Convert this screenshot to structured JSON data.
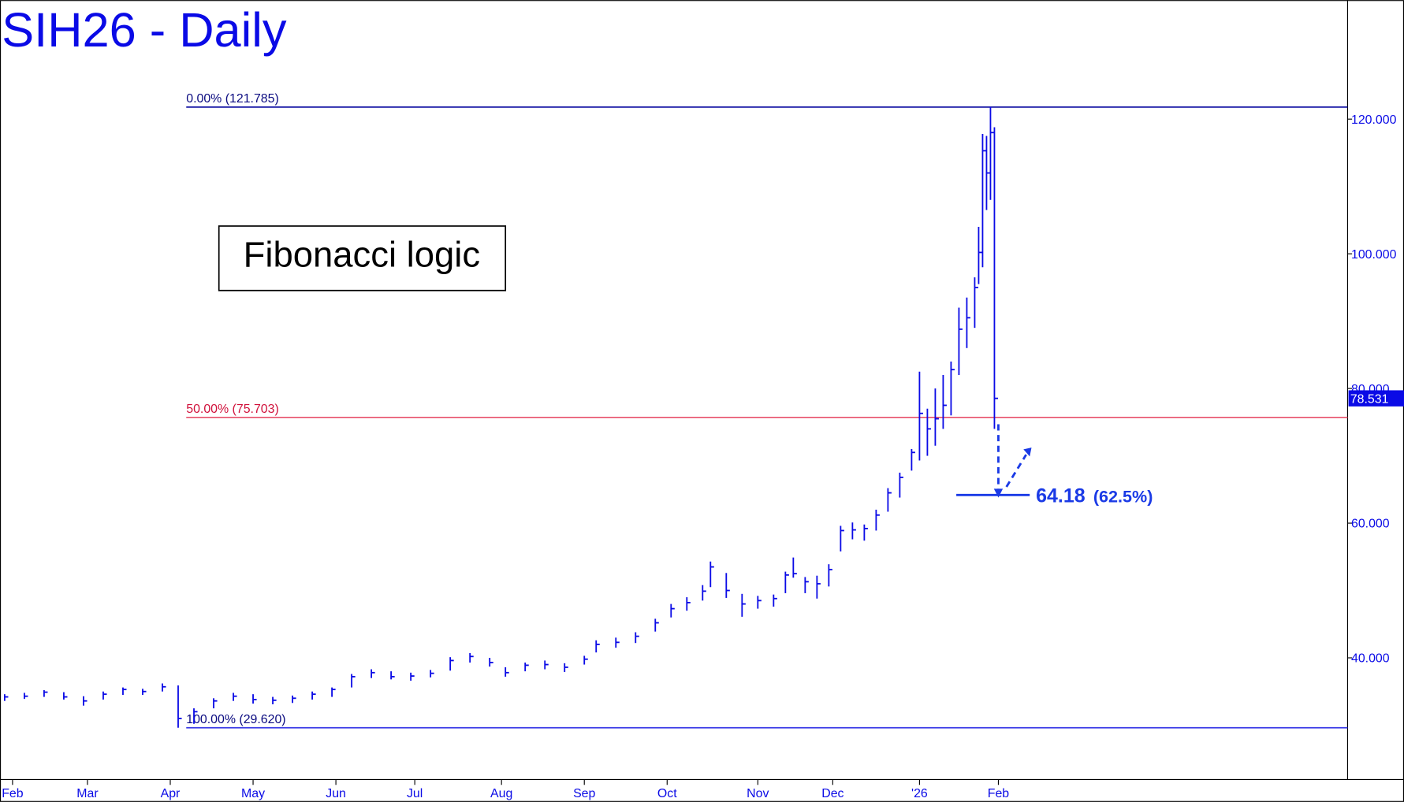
{
  "chart_data": {
    "type": "ohlc",
    "title": "SIH26 - Daily",
    "color": "#0a0ae6",
    "x": [
      -2,
      3,
      8,
      13,
      18,
      23,
      28,
      33,
      38,
      42,
      46,
      51,
      56,
      61,
      66,
      71,
      76,
      81,
      86,
      91,
      96,
      101,
      106,
      111,
      116,
      121,
      125,
      130,
      135,
      140,
      145,
      148,
      153,
      158,
      163,
      167,
      171,
      175,
      177,
      181,
      185,
      189,
      193,
      196,
      198,
      201,
      204,
      207,
      210,
      213,
      216,
      219,
      222,
      225,
      228,
      230,
      232,
      234,
      236,
      238,
      240,
      242,
      244,
      245,
      246,
      247,
      248,
      249
    ],
    "high": [
      34.6,
      34.8,
      35.2,
      34.9,
      34.3,
      35.0,
      35.6,
      35.4,
      36.2,
      35.9,
      32.5,
      34.0,
      34.8,
      34.6,
      34.2,
      34.4,
      35.0,
      35.6,
      37.6,
      38.3,
      38.0,
      37.8,
      38.2,
      40.1,
      40.7,
      40.0,
      38.6,
      39.3,
      39.6,
      39.2,
      40.3,
      42.6,
      43.0,
      43.8,
      45.8,
      48.0,
      49.0,
      50.8,
      54.3,
      52.6,
      49.5,
      49.2,
      49.4,
      52.8,
      54.9,
      52.0,
      52.2,
      53.9,
      59.6,
      60.1,
      59.8,
      62.0,
      65.2,
      67.5,
      71.0,
      82.5,
      77.0,
      80.0,
      82.0,
      84.0,
      92.0,
      93.5,
      96.5,
      104.0,
      117.8,
      117.5,
      121.785,
      118.8
    ],
    "low": [
      33.6,
      33.9,
      34.2,
      33.8,
      32.9,
      33.8,
      34.5,
      34.5,
      35.0,
      29.62,
      30.2,
      32.5,
      33.6,
      33.2,
      33.1,
      33.3,
      33.8,
      34.2,
      35.6,
      37.0,
      36.8,
      36.6,
      37.1,
      38.1,
      39.3,
      38.7,
      37.2,
      38.0,
      38.3,
      37.9,
      39.0,
      40.8,
      41.5,
      42.2,
      43.9,
      46.0,
      47.0,
      48.5,
      50.5,
      48.9,
      46.1,
      47.3,
      47.6,
      49.6,
      51.9,
      49.6,
      48.8,
      50.6,
      55.8,
      57.6,
      57.4,
      58.9,
      61.7,
      63.8,
      67.8,
      69.3,
      70.0,
      71.5,
      74.0,
      76.0,
      82.0,
      86.0,
      89.0,
      95.5,
      98.0,
      106.5,
      108.0,
      74.0
    ],
    "close": [
      34.2,
      34.3,
      34.9,
      34.2,
      33.6,
      34.6,
      35.3,
      35.0,
      35.7,
      31.0,
      32.0,
      33.6,
      34.3,
      33.8,
      33.7,
      34.0,
      34.6,
      35.3,
      37.2,
      37.8,
      37.2,
      37.3,
      37.7,
      39.6,
      40.2,
      39.3,
      37.8,
      38.9,
      39.0,
      38.6,
      39.8,
      42.0,
      42.3,
      43.2,
      45.2,
      47.3,
      48.2,
      49.9,
      53.5,
      50.0,
      48.0,
      48.5,
      48.8,
      52.3,
      52.5,
      51.3,
      51.0,
      53.1,
      58.9,
      59.0,
      59.2,
      61.2,
      64.5,
      66.8,
      70.5,
      76.3,
      74.0,
      75.5,
      77.5,
      82.8,
      88.8,
      90.5,
      95.0,
      100.2,
      115.3,
      112.0,
      118.0,
      78.531
    ],
    "xlim": [
      -3.18,
      338.56
    ],
    "xticks": [
      {
        "value": 0,
        "label": "Feb"
      },
      {
        "value": 19,
        "label": "Mar"
      },
      {
        "value": 40,
        "label": "Apr"
      },
      {
        "value": 61,
        "label": "May"
      },
      {
        "value": 82,
        "label": "Jun"
      },
      {
        "value": 102,
        "label": "Jul"
      },
      {
        "value": 124,
        "label": "Aug"
      },
      {
        "value": 145,
        "label": "Sep"
      },
      {
        "value": 166,
        "label": "Oct"
      },
      {
        "value": 189,
        "label": "Nov"
      },
      {
        "value": 208,
        "label": "Dec"
      },
      {
        "value": 230,
        "label": "'26"
      },
      {
        "value": 250,
        "label": "Feb"
      }
    ],
    "ylim": [
      21.93,
      137.67
    ],
    "yticks": [
      {
        "value": 40,
        "label": "40.000"
      },
      {
        "value": 60,
        "label": "60.000"
      },
      {
        "value": 80,
        "label": "80.000"
      },
      {
        "value": 100,
        "label": "100.000"
      },
      {
        "value": 120,
        "label": "120.000"
      }
    ],
    "last_price": 78.531,
    "fib_levels": [
      {
        "label": "0.00% (121.785)",
        "value": 121.785,
        "color": "#0a0aa0"
      },
      {
        "label": "50.00% (75.703)",
        "value": 75.703,
        "color": "#e8506a"
      },
      {
        "label": "100.00% (29.620)",
        "value": 29.62,
        "color": "#3a3ae6"
      }
    ],
    "note": "Fibonacci logic",
    "target": {
      "value": 64.18,
      "pct": "(62.5%)"
    }
  }
}
